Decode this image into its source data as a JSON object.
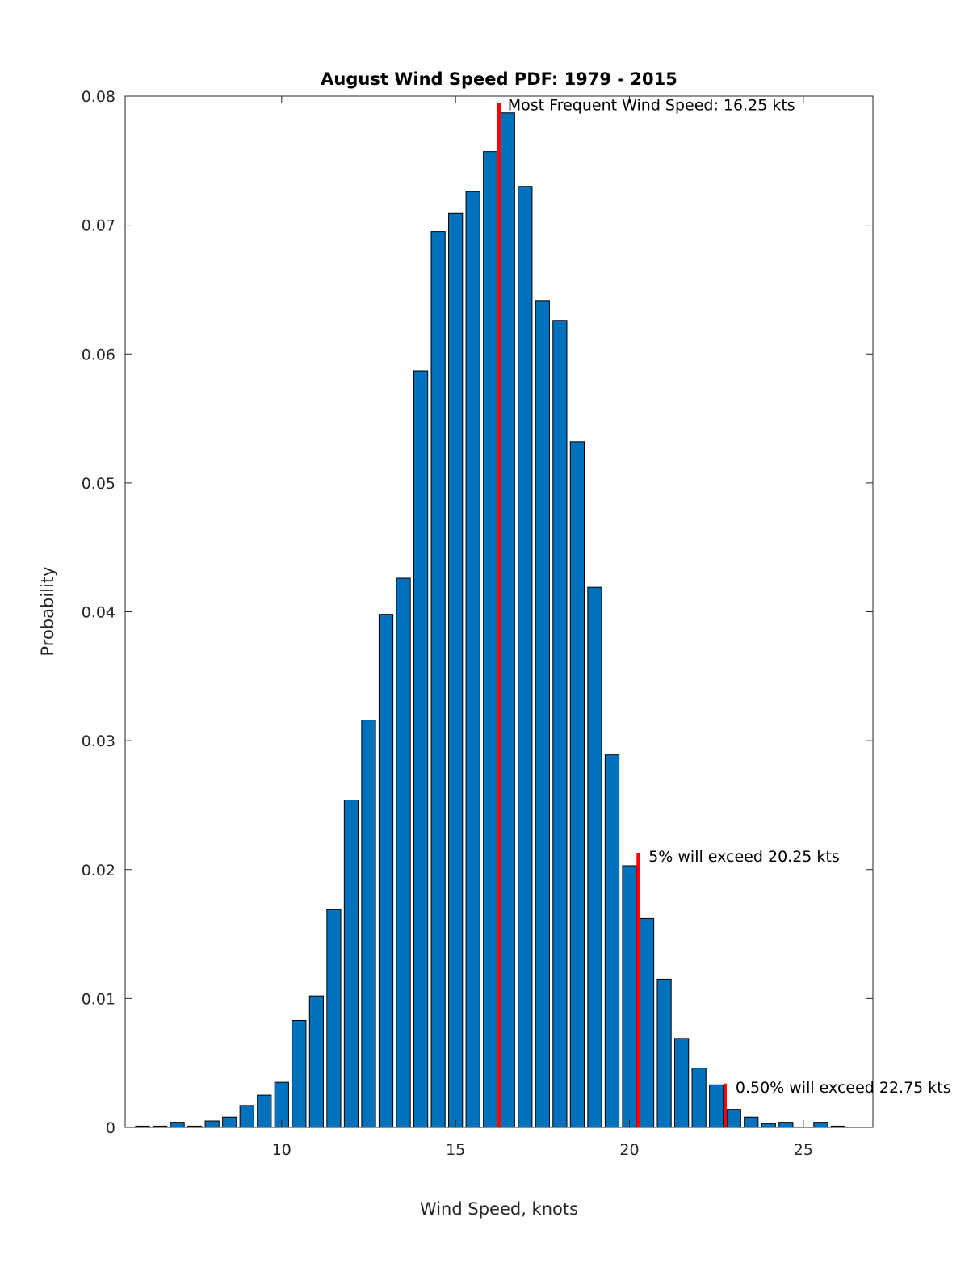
{
  "chart_data": {
    "type": "bar",
    "title": "August Wind Speed PDF: 1979 - 2015",
    "xlabel": "Wind Speed, knots",
    "ylabel": "Probability",
    "xlim": [
      5.5,
      27
    ],
    "ylim": [
      0,
      0.08
    ],
    "xticks": [
      10,
      15,
      20,
      25
    ],
    "xtick_labels": [
      "10",
      "15",
      "20",
      "25"
    ],
    "yticks": [
      0,
      0.01,
      0.02,
      0.03,
      0.04,
      0.05,
      0.06,
      0.07,
      0.08
    ],
    "ytick_labels": [
      "0",
      "0.01",
      "0.02",
      "0.03",
      "0.04",
      "0.05",
      "0.06",
      "0.07",
      "0.08"
    ],
    "bar_width": 0.4,
    "bar_color": "#0072BD",
    "bar_edge_color": "#000000",
    "marker_color": "#FF0000",
    "grid": false,
    "x": [
      6.0,
      6.5,
      7.0,
      7.5,
      8.0,
      8.5,
      9.0,
      9.5,
      10.0,
      10.5,
      11.0,
      11.5,
      12.0,
      12.5,
      13.0,
      13.5,
      14.0,
      14.5,
      15.0,
      15.5,
      16.0,
      16.5,
      17.0,
      17.5,
      18.0,
      18.5,
      19.0,
      19.5,
      20.0,
      20.5,
      21.0,
      21.5,
      22.0,
      22.5,
      23.0,
      23.5,
      24.0,
      24.5,
      25.0,
      25.5,
      26.0
    ],
    "values": [
      0.0001,
      0.0001,
      0.0004,
      0.0001,
      0.0005,
      0.0008,
      0.0017,
      0.0025,
      0.0035,
      0.0083,
      0.0102,
      0.0169,
      0.0254,
      0.0316,
      0.0398,
      0.0426,
      0.0587,
      0.0695,
      0.0709,
      0.0726,
      0.0757,
      0.0787,
      0.073,
      0.0641,
      0.0626,
      0.0532,
      0.0419,
      0.0289,
      0.0203,
      0.0162,
      0.0115,
      0.0069,
      0.0046,
      0.0033,
      0.0014,
      0.0008,
      0.0003,
      0.0004,
      0.0,
      0.0004,
      0.0001
    ],
    "markers": [
      {
        "x": 16.25,
        "y_top": 0.0795,
        "label": "Most Frequent Wind Speed: 16.25 kts",
        "label_x": 16.5,
        "label_y": 0.0789
      },
      {
        "x": 20.25,
        "y_top": 0.0213,
        "label": "5% will exceed 20.25 kts",
        "label_x": 20.55,
        "label_y": 0.0206
      },
      {
        "x": 22.75,
        "y_top": 0.0034,
        "label": "0.50% will exceed 22.75 kts",
        "label_x": 23.05,
        "label_y": 0.0027
      }
    ]
  }
}
